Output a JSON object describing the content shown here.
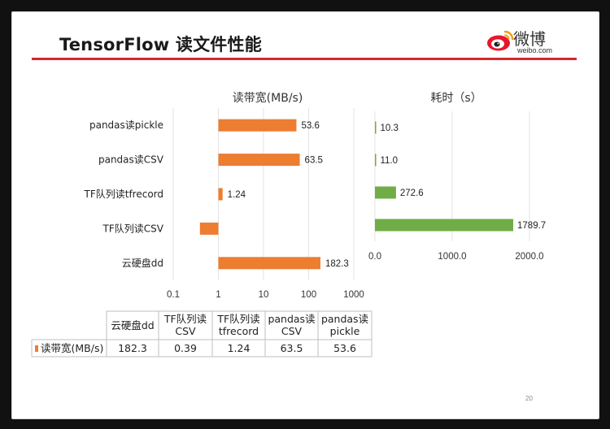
{
  "slide": {
    "title": "TensorFlow 读文件性能",
    "page_number": "20",
    "accent_color": "#d8262e"
  },
  "logo": {
    "text_cn": "微博",
    "text_en": "weibo.com",
    "icon": "weibo-eye-icon",
    "color": "#e6162d"
  },
  "chart_data": [
    {
      "type": "bar",
      "orientation": "horizontal",
      "title": "读带宽(MB/s)",
      "categories": [
        "pandas读pickle",
        "pandas读CSV",
        "TF队列读tfrecord",
        "TF队列读CSV",
        "云硬盘dd"
      ],
      "values": [
        53.6,
        63.5,
        1.24,
        0.39,
        182.3
      ],
      "value_labels": [
        "53.6",
        "63.5",
        "1.24",
        "",
        "182.3"
      ],
      "x_scale": "log",
      "x_ticks": [
        "0.1",
        "1",
        "10",
        "100",
        "1000"
      ],
      "xlim": [
        0.1,
        1000
      ],
      "color": "#ed7d31",
      "grid": true,
      "data_table": {
        "headers": [
          "云硬盘dd",
          "TF队列读CSV",
          "TF队列读tfrecord",
          "pandas读CSV",
          "pandas读pickle"
        ],
        "series_label": "读带宽(MB/s)",
        "values": [
          "182.3",
          "0.39",
          "1.24",
          "63.5",
          "53.6"
        ]
      }
    },
    {
      "type": "bar",
      "orientation": "horizontal",
      "title": "耗时（s）",
      "categories": [
        "pandas读pickle",
        "pandas读CSV",
        "TF队列读tfrecord",
        "TF队列读CSV"
      ],
      "values": [
        10.3,
        11.0,
        272.6,
        1789.7
      ],
      "value_labels": [
        "10.3",
        "11.0",
        "272.6",
        "1789.7"
      ],
      "x_ticks": [
        "0.0",
        "1000.0",
        "2000.0"
      ],
      "xlim": [
        0,
        2000
      ],
      "color": "#70ad47",
      "grid": true
    }
  ]
}
